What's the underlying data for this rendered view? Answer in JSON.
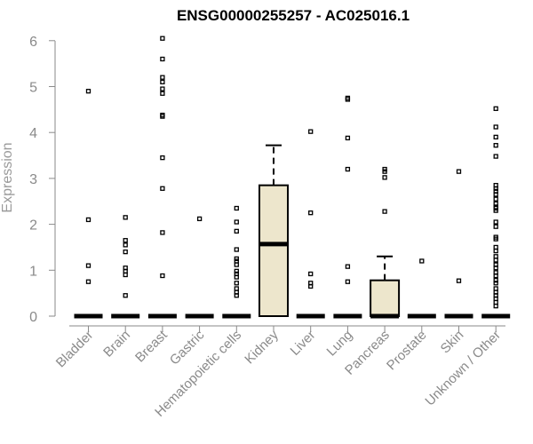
{
  "chart_data": {
    "type": "boxplot",
    "title": "ENSG00000255257 - AC025016.1",
    "ylabel": "Expression",
    "xlabel": "",
    "ylim": [
      0,
      6
    ],
    "yticks": [
      "0",
      "1",
      "2",
      "3",
      "4",
      "5",
      "6"
    ],
    "grid": false,
    "box_fill": "#ede6cc",
    "box_stroke": "#000000",
    "categories": [
      "Bladder",
      "Brain",
      "Breast",
      "Gastric",
      "Hematopoietic cells",
      "Kidney",
      "Liver",
      "Lung",
      "Pancreas",
      "Prostate",
      "Skin",
      "Unknown / Other"
    ],
    "boxes": [
      {
        "q1": 0,
        "median": 0,
        "q3": 0,
        "whisker_low": 0,
        "whisker_high": 0
      },
      {
        "q1": 0,
        "median": 0,
        "q3": 0,
        "whisker_low": 0,
        "whisker_high": 0
      },
      {
        "q1": 0,
        "median": 0,
        "q3": 0,
        "whisker_low": 0,
        "whisker_high": 0
      },
      {
        "q1": 0,
        "median": 0,
        "q3": 0,
        "whisker_low": 0,
        "whisker_high": 0
      },
      {
        "q1": 0,
        "median": 0,
        "q3": 0,
        "whisker_low": 0,
        "whisker_high": 0
      },
      {
        "q1": 0,
        "median": 1.57,
        "q3": 2.85,
        "whisker_low": 0,
        "whisker_high": 3.72
      },
      {
        "q1": 0,
        "median": 0,
        "q3": 0,
        "whisker_low": 0,
        "whisker_high": 0
      },
      {
        "q1": 0,
        "median": 0,
        "q3": 0,
        "whisker_low": 0,
        "whisker_high": 0
      },
      {
        "q1": 0,
        "median": 0,
        "q3": 0.78,
        "whisker_low": 0,
        "whisker_high": 1.3
      },
      {
        "q1": 0,
        "median": 0,
        "q3": 0,
        "whisker_low": 0,
        "whisker_high": 0
      },
      {
        "q1": 0,
        "median": 0,
        "q3": 0,
        "whisker_low": 0,
        "whisker_high": 0
      },
      {
        "q1": 0,
        "median": 0,
        "q3": 0,
        "whisker_low": 0,
        "whisker_high": 0
      }
    ],
    "outliers": [
      [
        4.9,
        2.1,
        1.1,
        0.75
      ],
      [
        2.15,
        1.65,
        1.55,
        1.4,
        1.05,
        0.98,
        0.9,
        0.45
      ],
      [
        6.05,
        5.6,
        5.2,
        5.1,
        4.95,
        4.85,
        4.38,
        4.35,
        3.45,
        2.78,
        1.82,
        0.88
      ],
      [
        2.12
      ],
      [
        2.35,
        2.05,
        1.85,
        1.45,
        1.25,
        1.2,
        1.12,
        0.98,
        0.92,
        0.85,
        0.72,
        0.6,
        0.52,
        0.45
      ],
      [],
      [
        4.02,
        2.25,
        0.92,
        0.72,
        0.65
      ],
      [
        4.75,
        4.72,
        3.88,
        3.2,
        1.08,
        0.75
      ],
      [
        3.2,
        3.15,
        3.02,
        2.28
      ],
      [
        1.2
      ],
      [
        3.15,
        0.77
      ],
      [
        4.52,
        4.12,
        3.9,
        3.72,
        3.48,
        2.85,
        2.78,
        2.72,
        2.65,
        2.55,
        2.45,
        2.38,
        2.35,
        2.3,
        2.05,
        1.95,
        1.72,
        1.68,
        1.5,
        1.42,
        1.3,
        1.22,
        1.12,
        1.05,
        0.95,
        0.88,
        0.78,
        0.72,
        0.6,
        0.52,
        0.45,
        0.38,
        0.3,
        0.22
      ]
    ]
  }
}
